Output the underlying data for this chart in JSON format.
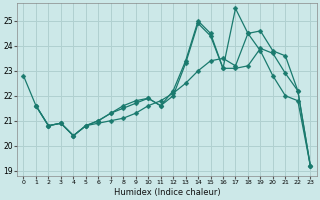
{
  "xlabel": "Humidex (Indice chaleur)",
  "bg_color": "#cce8e8",
  "grid_color": "#b0d0d0",
  "line_color": "#1a7a6e",
  "xlim": [
    -0.5,
    23.5
  ],
  "ylim": [
    18.8,
    25.7
  ],
  "yticks": [
    19,
    20,
    21,
    22,
    23,
    24,
    25
  ],
  "xticks": [
    0,
    1,
    2,
    3,
    4,
    5,
    6,
    7,
    8,
    9,
    10,
    11,
    12,
    13,
    14,
    15,
    16,
    17,
    18,
    19,
    20,
    21,
    22,
    23
  ],
  "series": [
    {
      "x": [
        0,
        1,
        2,
        3,
        4,
        5,
        6,
        7,
        8,
        9,
        10,
        11,
        12,
        13,
        14,
        15,
        16,
        17,
        18,
        19,
        20,
        21,
        22,
        23
      ],
      "y": [
        22.8,
        21.6,
        20.8,
        20.9,
        20.4,
        20.8,
        21.0,
        21.3,
        21.5,
        21.7,
        21.9,
        21.6,
        22.2,
        23.4,
        25.0,
        24.5,
        23.1,
        23.1,
        23.2,
        23.9,
        23.7,
        22.9,
        22.2,
        19.2
      ]
    },
    {
      "x": [
        1,
        2,
        3,
        4,
        5,
        6,
        7,
        8,
        9,
        10,
        11,
        12,
        13,
        14,
        15,
        16,
        17,
        18,
        19,
        20,
        21,
        22,
        23
      ],
      "y": [
        21.6,
        20.8,
        20.9,
        20.4,
        20.8,
        21.0,
        21.3,
        21.6,
        21.8,
        21.9,
        21.6,
        22.0,
        23.3,
        24.9,
        24.4,
        23.1,
        25.5,
        24.5,
        24.6,
        23.8,
        23.6,
        22.2,
        19.2
      ]
    },
    {
      "x": [
        1,
        2,
        3,
        4,
        5,
        6,
        7,
        8,
        9,
        10,
        11,
        12,
        13,
        14,
        15,
        16,
        17,
        18,
        19,
        20,
        21,
        22,
        23
      ],
      "y": [
        21.6,
        20.8,
        20.9,
        20.4,
        20.8,
        20.9,
        21.0,
        21.1,
        21.3,
        21.6,
        21.8,
        22.1,
        22.5,
        23.0,
        23.4,
        23.5,
        23.2,
        24.5,
        23.8,
        22.8,
        22.0,
        21.8,
        19.2
      ]
    }
  ]
}
